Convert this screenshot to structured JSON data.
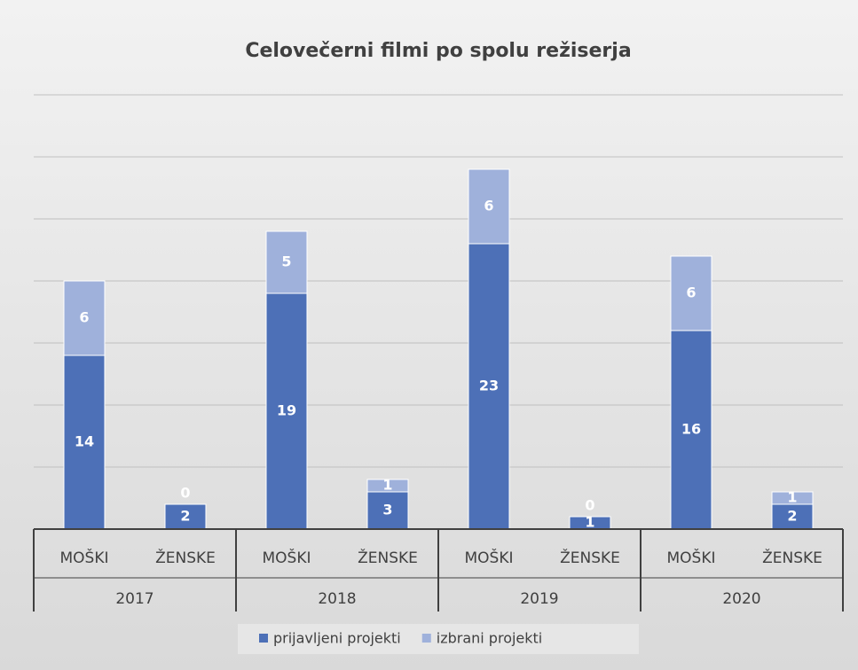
{
  "chart_data": {
    "type": "stacked_bar",
    "title": "Celovečerni filmi po spolu režiserja",
    "categories": [
      "MOŠKI",
      "ŽENSKE",
      "MOŠKI",
      "ŽENSKE",
      "MOŠKI",
      "ŽENSKE",
      "MOŠKI",
      "ŽENSKE"
    ],
    "groups": [
      "2017",
      "2018",
      "2019",
      "2020"
    ],
    "series": [
      {
        "name": "prijavljeni projekti",
        "color": "#4d70b7",
        "values": [
          14,
          2,
          19,
          3,
          23,
          1,
          16,
          2
        ]
      },
      {
        "name": "izbrani projekti",
        "color": "#9fb1db",
        "values": [
          6,
          0,
          5,
          1,
          6,
          0,
          6,
          1
        ]
      }
    ],
    "ylim": [
      0,
      35
    ],
    "yticks": [
      0,
      5,
      10,
      15,
      20,
      25,
      30,
      35
    ],
    "show_ytick_labels": false,
    "grid": true,
    "data_labels": true,
    "legend": "bottom"
  }
}
